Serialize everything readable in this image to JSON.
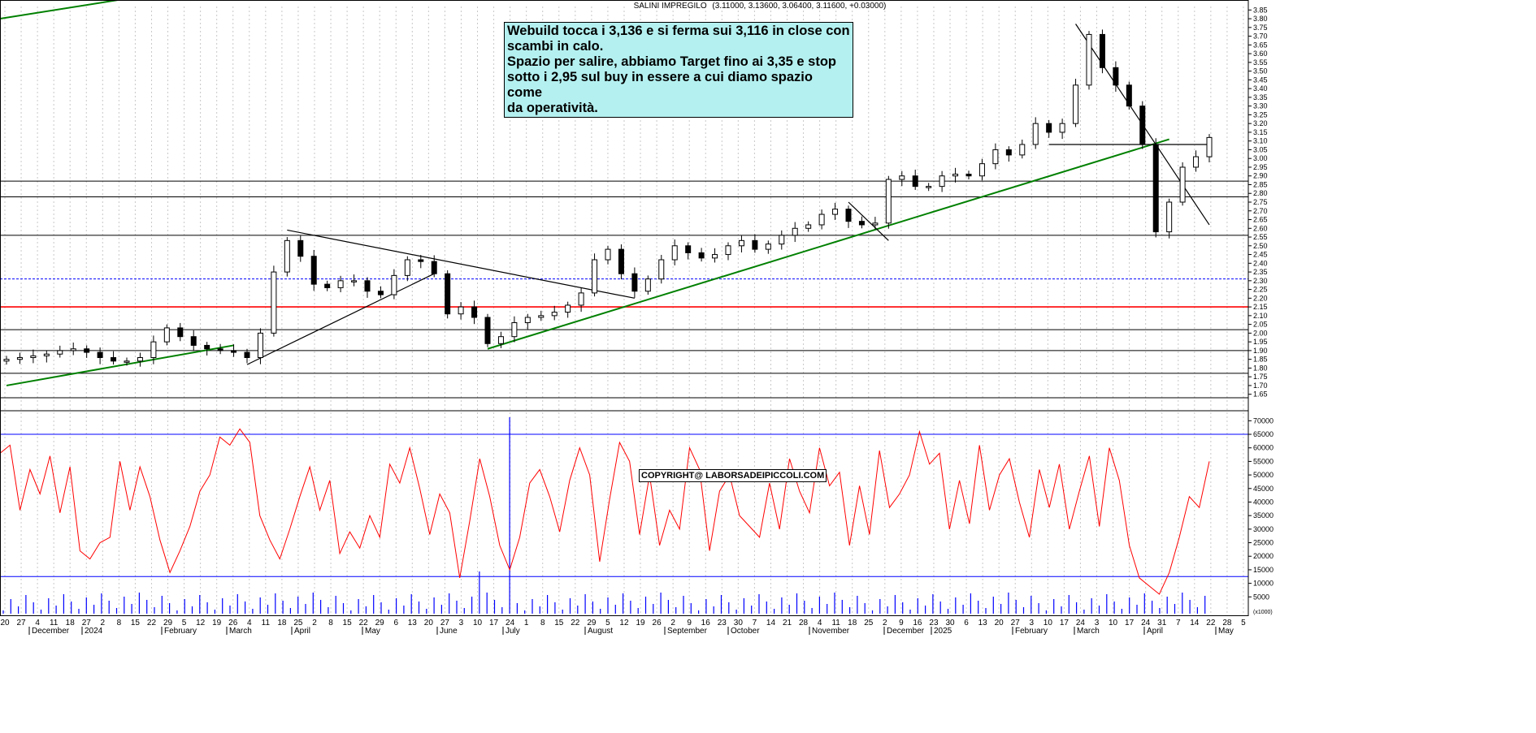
{
  "chart_data": [
    {
      "type": "candlestick",
      "title": "SALINI IMPREGILO",
      "ohlc_label": "(3.11000, 3.13600, 3.06400, 3.11600, +0.03000)",
      "x_dates": [
        "20",
        "27",
        "4",
        "11",
        "18",
        "27",
        "2",
        "8",
        "15",
        "22",
        "29",
        "5",
        "12",
        "19",
        "26",
        "4",
        "11",
        "18",
        "25",
        "2",
        "8",
        "15",
        "22",
        "29",
        "6",
        "13",
        "20",
        "27",
        "3",
        "10",
        "17",
        "24",
        "1",
        "8",
        "15",
        "22",
        "29",
        "5",
        "12",
        "19",
        "26",
        "2",
        "9",
        "16",
        "23",
        "30",
        "7",
        "14",
        "21",
        "28",
        "4",
        "11",
        "18",
        "25",
        "2",
        "9",
        "16",
        "23",
        "30",
        "6",
        "13",
        "20",
        "27",
        "3",
        "10",
        "17",
        "24",
        "3",
        "10",
        "17",
        "24",
        "31",
        "7",
        "14",
        "22",
        "28",
        "5"
      ],
      "x_months": [
        "December",
        "2024",
        "February",
        "March",
        "April",
        "May",
        "June",
        "July",
        "August",
        "September",
        "October",
        "November",
        "December",
        "2025",
        "February",
        "March",
        "April",
        "May"
      ],
      "y_ticks": [
        "3.85",
        "3.80",
        "3.75",
        "3.70",
        "3.65",
        "3.60",
        "3.55",
        "3.50",
        "3.45",
        "3.40",
        "3.35",
        "3.30",
        "3.25",
        "3.20",
        "3.15",
        "3.10",
        "3.05",
        "3.00",
        "2.95",
        "2.90",
        "2.85",
        "2.80",
        "2.75",
        "2.70",
        "2.65",
        "2.60",
        "2.55",
        "2.50",
        "2.45",
        "2.40",
        "2.35",
        "2.30",
        "2.25",
        "2.20",
        "2.15",
        "2.10",
        "2.05",
        "2.00",
        "1.95",
        "1.90",
        "1.85",
        "1.80",
        "1.75",
        "1.70",
        "1.65"
      ],
      "ylim": [
        1.63,
        3.87
      ],
      "closes": [
        1.85,
        1.86,
        1.87,
        1.88,
        1.9,
        1.91,
        1.89,
        1.86,
        1.84,
        1.84,
        1.86,
        1.95,
        2.03,
        1.98,
        1.93,
        1.91,
        1.9,
        1.89,
        1.86,
        2.0,
        2.35,
        2.53,
        2.44,
        2.28,
        2.26,
        2.3,
        2.3,
        2.24,
        2.22,
        2.33,
        2.42,
        2.41,
        2.34,
        2.11,
        2.15,
        2.09,
        1.94,
        1.98,
        2.06,
        2.09,
        2.1,
        2.12,
        2.16,
        2.23,
        2.42,
        2.48,
        2.34,
        2.24,
        2.31,
        2.42,
        2.5,
        2.46,
        2.43,
        2.45,
        2.5,
        2.53,
        2.48,
        2.51,
        2.56,
        2.6,
        2.62,
        2.68,
        2.71,
        2.64,
        2.62,
        2.63,
        2.88,
        2.9,
        2.84,
        2.84,
        2.9,
        2.91,
        2.9,
        2.97,
        3.05,
        3.02,
        3.08,
        3.2,
        3.15,
        3.2,
        3.42,
        3.71,
        3.52,
        3.42,
        3.3,
        3.08,
        2.58,
        2.75,
        2.95,
        3.01,
        3.12
      ],
      "support_levels": [
        2.87,
        2.78,
        2.56,
        2.31,
        2.15,
        2.02,
        1.9,
        1.77,
        1.63
      ],
      "support_colors": [
        "#000000",
        "#000000",
        "#000000",
        "#0000ff",
        "#ff0000",
        "#000000",
        "#000000",
        "#000000",
        "#000000"
      ],
      "trendline_colors": [
        "#008000",
        "#000000"
      ]
    },
    {
      "type": "line",
      "title": "",
      "y_ticks": [
        "70000",
        "65000",
        "60000",
        "55000",
        "50000",
        "45000",
        "40000",
        "35000",
        "30000",
        "25000",
        "20000",
        "15000",
        "10000",
        "5000"
      ],
      "ylim": [
        0,
        72500
      ],
      "unit_label": "(x1000)",
      "series": [
        {
          "values": [
            58000,
            61000,
            37000,
            52000,
            43000,
            57000,
            36000,
            53000,
            22000,
            19000,
            25000,
            27000,
            55000,
            37000,
            53000,
            42000,
            26000,
            14000,
            22000,
            31000,
            44000,
            50000,
            64000,
            61000,
            67000,
            62000,
            35000,
            26000,
            19000,
            30000,
            42000,
            53000,
            37000,
            48000,
            21000,
            29000,
            23000,
            35000,
            27000,
            54000,
            47000,
            60000,
            45000,
            28000,
            43000,
            36000,
            12000,
            33000,
            56000,
            42000,
            24000,
            15000,
            27000,
            47000,
            52000,
            42000,
            29000,
            48000,
            60000,
            50000,
            18000,
            41000,
            62000,
            55000,
            28000,
            50000,
            24000,
            37000,
            30000,
            60000,
            52000,
            22000,
            44000,
            50000,
            35000,
            31000,
            27000,
            47000,
            30000,
            56000,
            44000,
            36000,
            60000,
            46000,
            51000,
            24000,
            46000,
            28000,
            59000,
            38000,
            43000,
            50000,
            66000,
            54000,
            58000,
            30000,
            48000,
            32000,
            61000,
            37000,
            50000,
            56000,
            40000,
            27000,
            52000,
            38000,
            54000,
            30000,
            44000,
            57000,
            31000,
            60000,
            48000,
            24000,
            12000,
            9000,
            6000,
            14000,
            27000,
            42000,
            38000,
            55000
          ]
        }
      ]
    }
  ],
  "annotation": {
    "line1": "Webuild tocca i 3,136 e si ferma sui 3,116 in close con",
    "line2": "scambi in calo.",
    "line3": "Spazio per salire, abbiamo Target fino ai 3,35 e stop",
    "line4": "sotto i 2,95 sul buy in essere a cui diamo spazio come",
    "line5": "da operatività."
  },
  "copyright": "COPYRIGHT@ LABORSADEIPICCOLI.COM"
}
